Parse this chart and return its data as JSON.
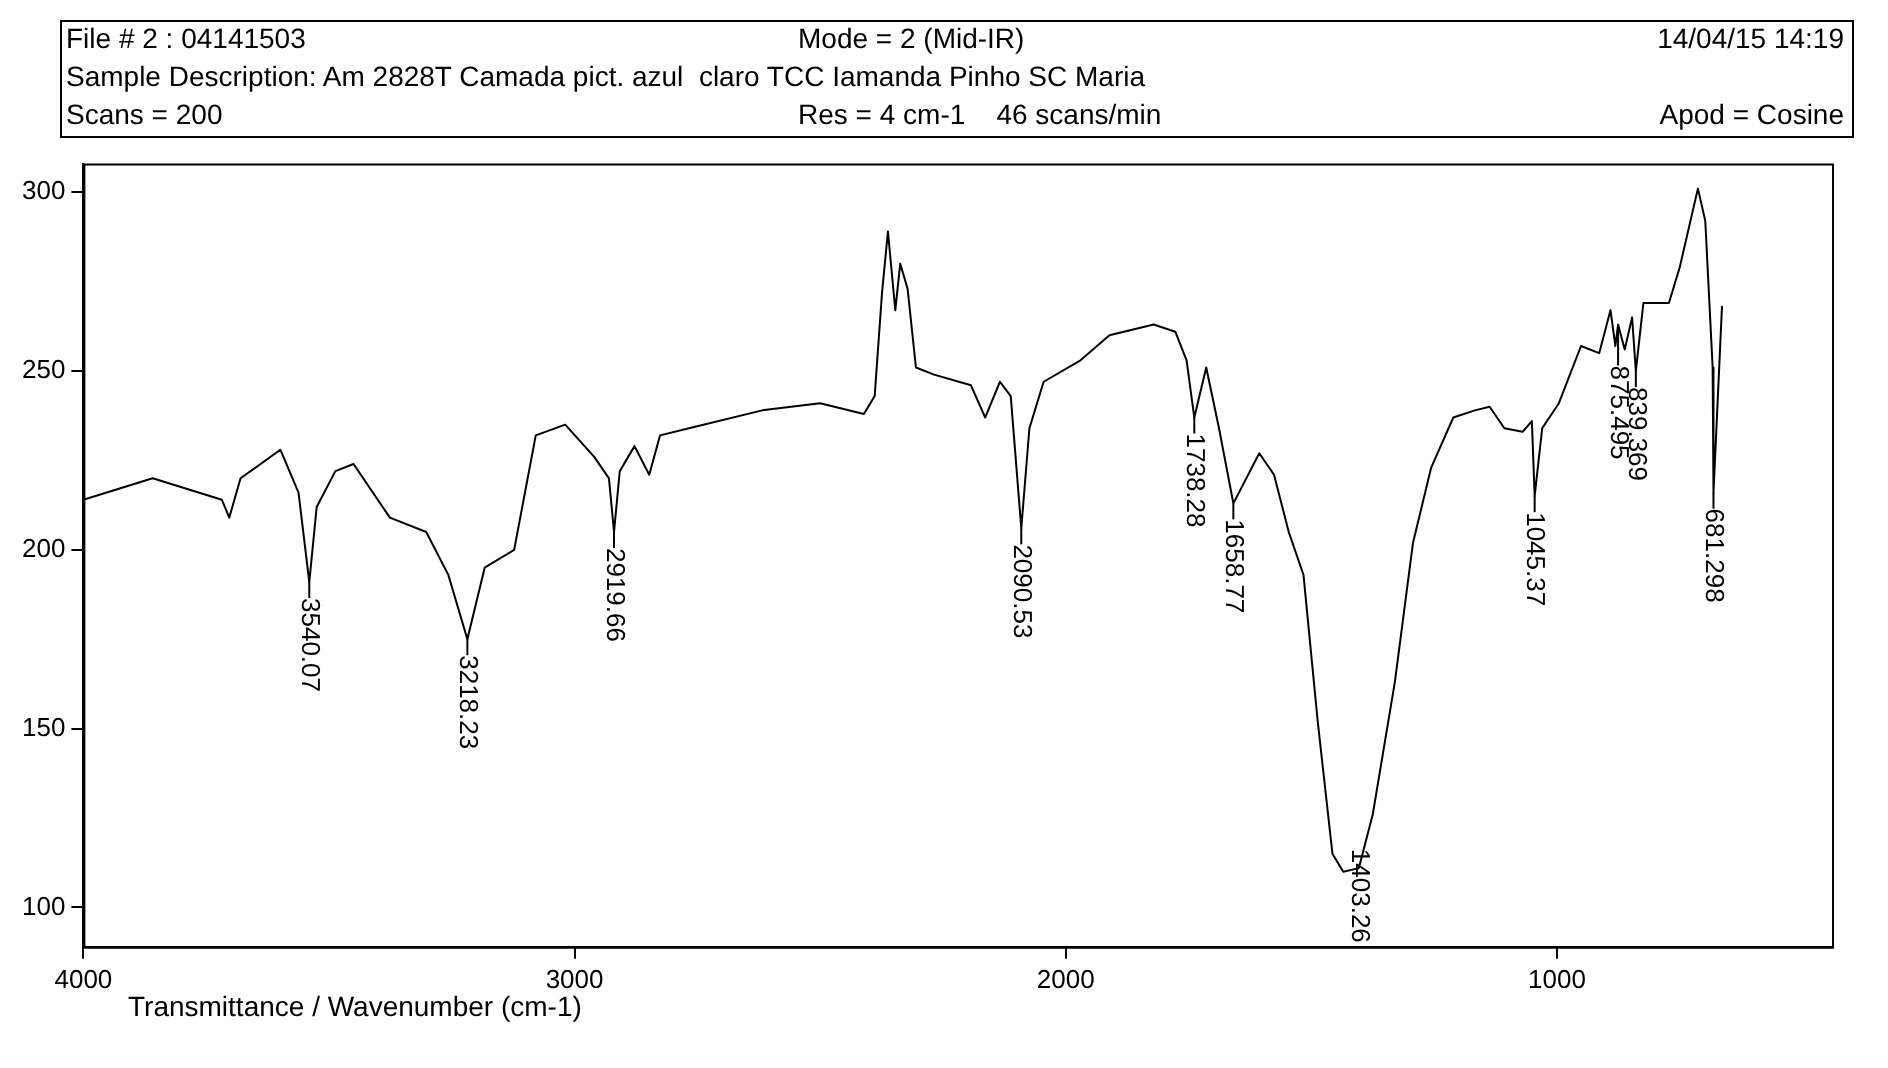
{
  "chart_data": {
    "type": "line",
    "subtitle": "Sample Description: Am 2828T Camada pict. azul  claro TCC Iamanda Pinho SC Maria",
    "xlabel": "Transmittance / Wavenumber (cm-1)",
    "annotations": [
      "File # 2 : 04141503",
      "Mode = 2 (Mid-IR)",
      "14/04/15 14:19",
      "Scans = 200",
      "Res = 4 cm-1    46 scans/min",
      "Apod = Cosine",
      {
        "text": "3540.07",
        "x": 3540.07,
        "y": 191
      },
      {
        "text": "3218.23",
        "x": 3218.23,
        "y": 175
      },
      {
        "text": "2919.66",
        "x": 2919.66,
        "y": 205
      },
      {
        "text": "2090.53",
        "x": 2090.53,
        "y": 206
      },
      {
        "text": "1738.28",
        "x": 1738.28,
        "y": 237
      },
      {
        "text": "1658.77",
        "x": 1658.77,
        "y": 213
      },
      {
        "text": "1403.26",
        "x": 1403.26,
        "y": 111
      },
      {
        "text": "1045.37",
        "x": 1045.37,
        "y": 215
      },
      {
        "text": "875.495",
        "x": 875.495,
        "y": 263
      },
      {
        "text": "839.369",
        "x": 839.369,
        "y": 250
      },
      {
        "text": "681.298",
        "x": 681.298,
        "y": 216
      }
    ],
    "series": [
      {
        "color": "#000000",
        "x": [
          4000,
          3859,
          3718,
          3703,
          3680,
          3599,
          3562,
          3540.07,
          3525,
          3487,
          3450,
          3376,
          3302,
          3257,
          3218.23,
          3183,
          3123,
          3079,
          3019,
          2960,
          2930,
          2919.66,
          2908,
          2878,
          2848,
          2826,
          2767,
          2618,
          2500,
          2411,
          2389,
          2374,
          2362,
          2347,
          2337,
          2322,
          2305,
          2268,
          2193,
          2164,
          2134,
          2112,
          2090.53,
          2074,
          2045,
          1970,
          1911,
          1821,
          1777,
          1754,
          1738.28,
          1714,
          1688,
          1658.77,
          1606,
          1576,
          1546,
          1516,
          1487,
          1457,
          1435,
          1403.26,
          1375,
          1330,
          1293,
          1256,
          1211,
          1167,
          1137,
          1107,
          1070,
          1051,
          1045.37,
          1030,
          996,
          951,
          914,
          891,
          881,
          875.495,
          862,
          847,
          839.369,
          824,
          772,
          750,
          713,
          698,
          683,
          681.298,
          664
        ],
        "values": [
          214,
          220,
          214,
          209,
          220,
          228,
          216,
          191,
          212,
          222,
          224,
          209,
          205,
          193,
          175,
          195,
          200,
          232,
          235,
          226,
          220,
          205,
          222,
          229,
          221,
          232,
          234,
          239,
          241,
          238,
          243,
          272,
          289,
          267,
          280,
          273,
          251,
          249,
          246,
          237,
          247,
          243,
          206,
          234,
          247,
          253,
          260,
          263,
          261,
          253,
          237,
          251,
          234,
          213,
          227,
          221,
          205,
          193,
          152,
          115,
          110,
          111,
          126,
          163,
          202,
          223,
          237,
          239,
          240,
          234,
          233,
          236,
          215,
          234,
          241,
          257,
          255,
          267,
          257,
          263,
          256,
          265,
          250,
          269,
          269,
          279,
          301,
          292,
          251,
          216,
          268
        ]
      }
    ],
    "xlim": [
      4000,
      440
    ],
    "ylim": [
      89,
      308
    ],
    "xticks": [
      4000,
      3000,
      2000,
      1000
    ],
    "yticks": [
      100,
      150,
      200,
      250,
      300
    ],
    "grid": false,
    "legend": false,
    "marker": "none",
    "line_style": "solid"
  }
}
